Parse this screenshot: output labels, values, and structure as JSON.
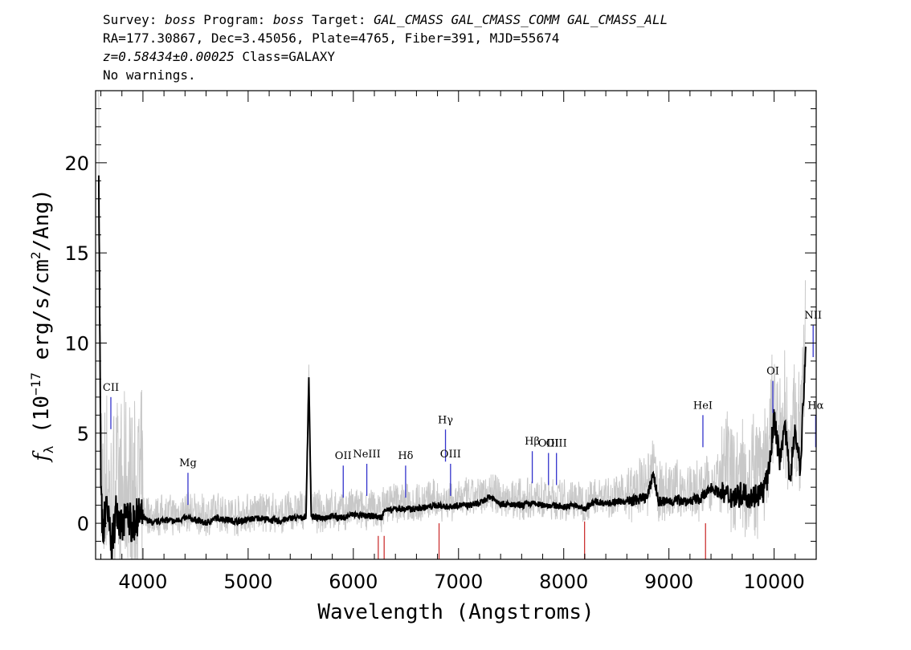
{
  "header": {
    "line1_prefix": "Survey: ",
    "survey": "boss",
    "program_label": " Program: ",
    "program": "boss",
    "target_label": " Target: ",
    "target": "GAL_CMASS GAL_CMASS_COMM GAL_CMASS_ALL",
    "line2": "RA=177.30867, Dec=3.45056, Plate=4765, Fiber=391, MJD=55674",
    "redshift": "z=0.58434±0.00025",
    "class_text": " Class=GALAXY",
    "warnings": "No warnings."
  },
  "colors": {
    "spectrum": "#000000",
    "noise": "#c8c8c8",
    "emission_marker": "#3333cc",
    "absorption_marker": "#cc3333"
  },
  "chart_data": {
    "type": "line",
    "title": "",
    "xlabel": "Wavelength (Angstroms)",
    "ylabel": "f_λ (10^-17 erg/s/cm^2/Ang)",
    "ylabel_parts": {
      "base": "(10",
      "exp": "−17",
      "mid": " erg/s/cm",
      "exp2": "2",
      "end": "/Ang)",
      "symbol": "f",
      "sub": "λ"
    },
    "xlim": [
      3550,
      10400
    ],
    "ylim": [
      -2,
      24
    ],
    "x_ticks": [
      4000,
      5000,
      6000,
      7000,
      8000,
      9000,
      10000
    ],
    "y_ticks": [
      0,
      5,
      10,
      15,
      20
    ],
    "grid": false,
    "series": [
      {
        "x": [
          3580,
          3600,
          3620,
          3650,
          3700,
          3750,
          3800,
          3850,
          3900,
          3950,
          4000,
          4100,
          4200,
          4300,
          4400,
          4500,
          4600,
          4700,
          4800,
          4900,
          5000,
          5100,
          5200,
          5300,
          5400,
          5500,
          5550,
          5577,
          5600,
          5650,
          5700,
          5800,
          5900,
          6000,
          6100,
          6200,
          6270,
          6300,
          6350,
          6400,
          6500,
          6600,
          6700,
          6800,
          6900,
          7000,
          7100,
          7200,
          7300,
          7400,
          7500,
          7600,
          7700,
          7800,
          7900,
          8000,
          8100,
          8200,
          8300,
          8400,
          8500,
          8600,
          8700,
          8800,
          8850,
          8900,
          9000,
          9100,
          9200,
          9300,
          9350,
          9400,
          9500,
          9600,
          9700,
          9800,
          9900,
          9950,
          10000,
          10050,
          10100,
          10150,
          10200,
          10250,
          10300
        ],
        "values": [
          19.3,
          2.0,
          -1.0,
          1.5,
          -1.5,
          1.0,
          -0.5,
          0.6,
          -0.2,
          0.4,
          0.3,
          0.0,
          0.2,
          0.1,
          0.3,
          0.2,
          0.0,
          0.3,
          0.2,
          0.1,
          0.2,
          0.3,
          0.2,
          0.1,
          0.3,
          0.3,
          0.4,
          8.1,
          0.4,
          0.3,
          0.3,
          0.4,
          0.3,
          0.5,
          0.4,
          0.4,
          0.3,
          0.8,
          0.7,
          0.8,
          0.8,
          0.8,
          0.9,
          1.0,
          0.9,
          1.0,
          1.0,
          1.1,
          1.5,
          1.1,
          1.0,
          1.0,
          1.1,
          1.0,
          1.0,
          0.9,
          1.0,
          0.8,
          1.2,
          1.1,
          1.2,
          1.2,
          1.3,
          1.5,
          2.8,
          1.2,
          1.2,
          1.3,
          1.2,
          1.4,
          1.6,
          2.0,
          1.6,
          1.5,
          1.6,
          1.5,
          1.8,
          2.8,
          6.0,
          3.5,
          5.5,
          2.5,
          5.2,
          3.0,
          9.8
        ]
      }
    ],
    "line_markers": [
      {
        "name": "CII",
        "wavelength": 3695,
        "kind": "emission",
        "level": 7.0
      },
      {
        "name": "Mg",
        "wavelength": 4428,
        "kind": "emission",
        "level": 2.8
      },
      {
        "name": "OII",
        "wavelength": 5904,
        "kind": "emission",
        "level": 3.2
      },
      {
        "name": "NeIII",
        "wavelength": 6128,
        "kind": "emission",
        "level": 3.3
      },
      {
        "name": "Hδ",
        "wavelength": 6497,
        "kind": "emission",
        "level": 3.2
      },
      {
        "name": "Hγ",
        "wavelength": 6876,
        "kind": "emission",
        "level": 5.2
      },
      {
        "name": "OIII",
        "wavelength": 6924,
        "kind": "emission",
        "level": 3.3
      },
      {
        "name": "Hβ",
        "wavelength": 7701,
        "kind": "emission",
        "level": 4.0
      },
      {
        "name": "OIII",
        "wavelength": 7855,
        "kind": "emission",
        "level": 3.9
      },
      {
        "name": "OIII",
        "wavelength": 7931,
        "kind": "emission",
        "level": 3.9
      },
      {
        "name": "HeI",
        "wavelength": 9323,
        "kind": "emission",
        "level": 6.0
      },
      {
        "name": "OI",
        "wavelength": 9988,
        "kind": "emission",
        "level": 7.9
      },
      {
        "name": "NII",
        "wavelength": 10371,
        "kind": "emission",
        "level": 11.0
      },
      {
        "name": "Hα",
        "wavelength": 10395,
        "kind": "emission",
        "level": 6.0
      },
      {
        "name": "",
        "wavelength": 6237,
        "kind": "absorption",
        "level": -0.7
      },
      {
        "name": "",
        "wavelength": 6293,
        "kind": "absorption",
        "level": -0.7
      },
      {
        "name": "",
        "wavelength": 6815,
        "kind": "absorption",
        "level": 0.0
      },
      {
        "name": "",
        "wavelength": 8198,
        "kind": "absorption",
        "level": 0.1
      },
      {
        "name": "",
        "wavelength": 9348,
        "kind": "absorption",
        "level": 0.0
      }
    ]
  }
}
